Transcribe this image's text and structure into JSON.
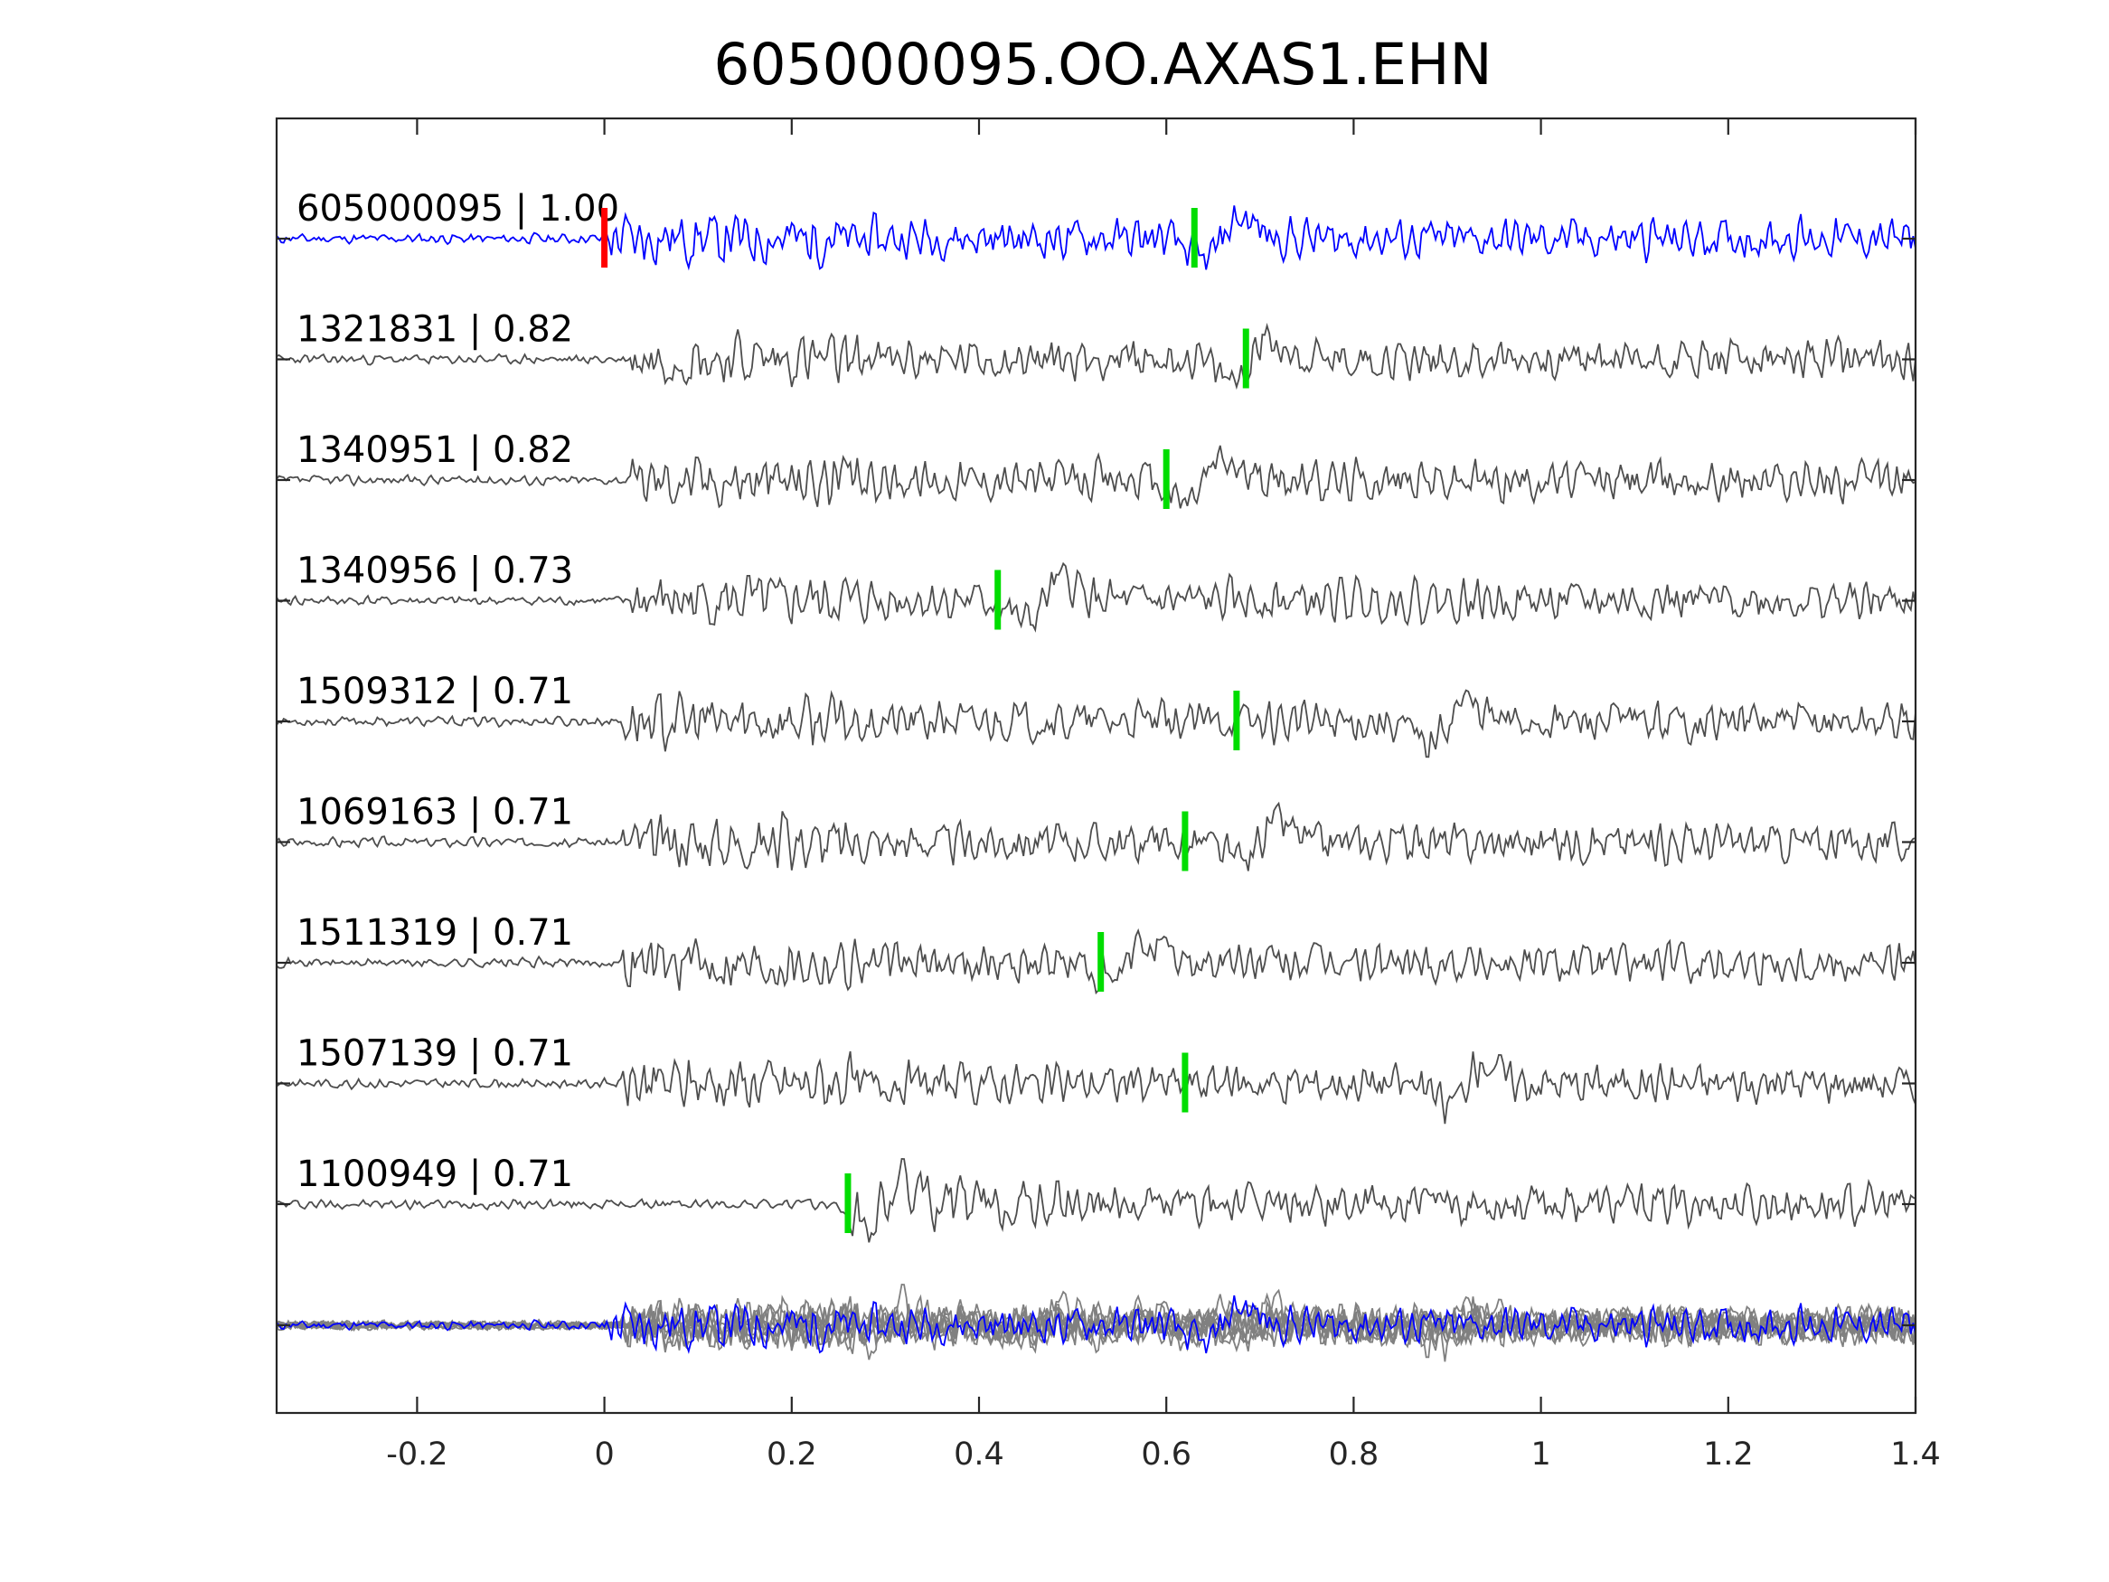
{
  "chart_data": {
    "type": "line",
    "title": "605000095.OO.AXAS1.EHN",
    "xlabel": "",
    "ylabel": "",
    "xlim": [
      -0.35,
      1.4
    ],
    "x_ticks": [
      -0.2,
      0,
      0.2,
      0.4,
      0.6,
      0.8,
      1,
      1.2,
      1.4
    ],
    "x_tick_labels": [
      "-0.2",
      "0",
      "0.2",
      "0.4",
      "0.6",
      "0.8",
      "1",
      "1.2",
      "1.4"
    ],
    "grid": false,
    "legend": "none",
    "colors": {
      "template": "#0000ff",
      "detection": "#4d4d4d",
      "stack": "#808080",
      "p_pick": "#ff0000",
      "s_pick": "#00dd00"
    },
    "traces": [
      {
        "id": "605000095",
        "cc": "1.00",
        "label": "605000095 | 1.00",
        "role": "template",
        "p_pick": 0.0,
        "pick": 0.63,
        "seed": 11,
        "onset": 0.0,
        "big_event": 0.66
      },
      {
        "id": "1321831",
        "cc": "0.82",
        "label": "1321831 | 0.82",
        "pick": 0.685,
        "seed": 23,
        "onset": 0.03,
        "big_event": 0.69
      },
      {
        "id": "1340951",
        "cc": "0.82",
        "label": "1340951 | 0.82",
        "pick": 0.6,
        "seed": 37,
        "onset": 0.03,
        "big_event": 0.64
      },
      {
        "id": "1340956",
        "cc": "0.73",
        "label": "1340956 | 0.73",
        "pick": 0.42,
        "seed": 41,
        "onset": 0.03,
        "big_event": 0.47
      },
      {
        "id": "1509312",
        "cc": "0.71",
        "label": "1509312 | 0.71",
        "pick": 0.675,
        "seed": 53,
        "onset": 0.02,
        "big_event": 0.9
      },
      {
        "id": "1069163",
        "cc": "0.71",
        "label": "1069163 | 0.71",
        "pick": 0.62,
        "seed": 67,
        "onset": 0.02,
        "big_event": 0.7
      },
      {
        "id": "1511319",
        "cc": "0.71",
        "label": "1511319 | 0.71",
        "pick": 0.53,
        "seed": 71,
        "onset": 0.02,
        "big_event": 0.56
      },
      {
        "id": "1507139",
        "cc": "0.71",
        "label": "1507139 | 0.71",
        "pick": 0.62,
        "seed": 83,
        "onset": 0.02,
        "big_event": 0.92
      },
      {
        "id": "1100949",
        "cc": "0.71",
        "label": "1100949 | 0.71",
        "pick": 0.26,
        "seed": 97,
        "onset": 0.26,
        "big_event": 0.3
      }
    ]
  }
}
